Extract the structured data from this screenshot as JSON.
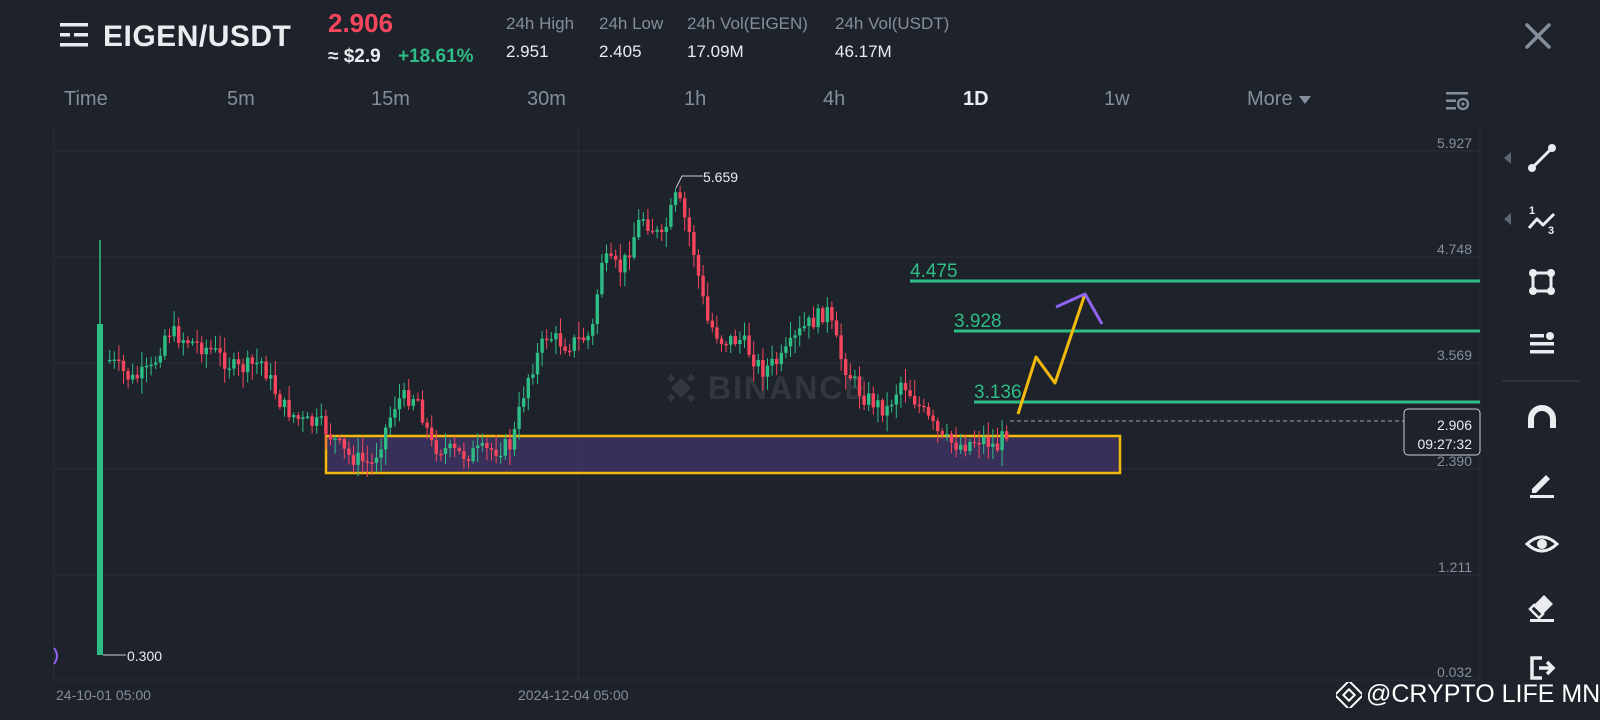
{
  "header": {
    "pair": "EIGEN/USDT",
    "last_price": "2.906",
    "approx_usd": "≈ $2.9",
    "change_pct": "+18.61%",
    "stats": [
      {
        "label": "24h High",
        "value": "2.951"
      },
      {
        "label": "24h Low",
        "value": "2.405"
      },
      {
        "label": "24h Vol(EIGEN)",
        "value": "17.09M"
      },
      {
        "label": "24h Vol(USDT)",
        "value": "46.17M"
      }
    ]
  },
  "timeframes": [
    "Time",
    "5m",
    "15m",
    "30m",
    "1h",
    "4h",
    "1D",
    "1w"
  ],
  "active_timeframe": "1D",
  "more_label": "More",
  "chart_data": {
    "type": "candlestick",
    "y_axis_ticks": [
      "5.927",
      "4.748",
      "3.569",
      "2.390",
      "1.211",
      "0.032"
    ],
    "x_axis_ticks": [
      "24-10-01 05:00",
      "2024-12-04 05:00"
    ],
    "high_marker": "5.659",
    "low_marker": "0.300",
    "current_price": "2.906",
    "countdown": "09:27:32",
    "horizontal_levels": [
      "4.475",
      "3.928",
      "3.136"
    ],
    "support_zone": [
      2.37,
      2.8
    ],
    "projection": "zigzag up to ~4.4",
    "watermark": "BINANCE",
    "colors": {
      "up": "#2ebd85",
      "down": "#f6465d",
      "zone": "#f0b90b",
      "levels": "#2ebd85",
      "projection": "#f0b90b",
      "target": "#8e63f0"
    }
  },
  "toolbar_icons": [
    "trend-line-icon",
    "fib-icon",
    "rectangle-icon",
    "position-icon",
    "magnet-icon",
    "pencil-icon",
    "eye-icon",
    "eraser-icon",
    "exit-icon"
  ],
  "footer": {
    "credit": "@CRYPTO LIFE MNE"
  }
}
